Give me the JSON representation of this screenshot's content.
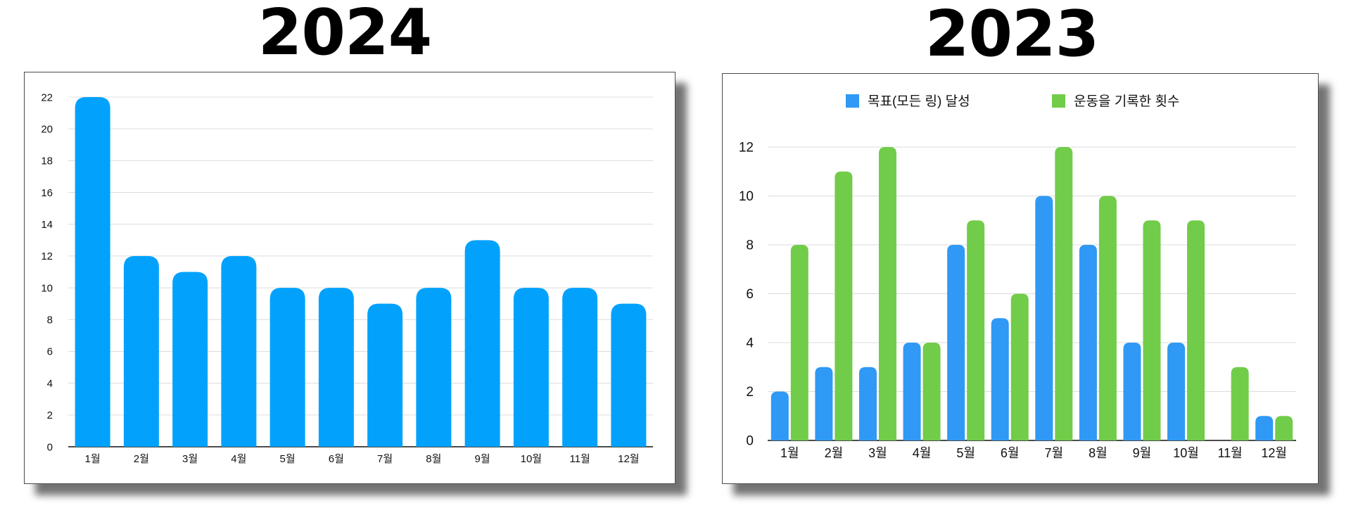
{
  "chart_data": [
    {
      "type": "bar",
      "title": "2024",
      "categories": [
        "1월",
        "2월",
        "3월",
        "4월",
        "5월",
        "6월",
        "7월",
        "8월",
        "9월",
        "10월",
        "11월",
        "12월"
      ],
      "series": [
        {
          "values": [
            22,
            12,
            11,
            12,
            10,
            10,
            9,
            10,
            13,
            10,
            10,
            9
          ],
          "color": "#02a2fc"
        }
      ],
      "ylim": [
        0,
        22
      ],
      "yticks": [
        0,
        2,
        4,
        6,
        8,
        10,
        12,
        14,
        16,
        18,
        20,
        22
      ],
      "grid": true,
      "legend": "none",
      "xlabel": "",
      "ylabel": ""
    },
    {
      "type": "bar",
      "title": "2023",
      "categories": [
        "1월",
        "2월",
        "3월",
        "4월",
        "5월",
        "6월",
        "7월",
        "8월",
        "9월",
        "10월",
        "11월",
        "12월"
      ],
      "series": [
        {
          "name": "목표(모든 링) 달성",
          "values": [
            2,
            3,
            3,
            4,
            8,
            5,
            10,
            8,
            4,
            4,
            0,
            1
          ],
          "color": "#2f99f5"
        },
        {
          "name": "운동을 기록한 횟수",
          "values": [
            8,
            11,
            12,
            4,
            9,
            6,
            12,
            10,
            9,
            9,
            3,
            1
          ],
          "color": "#71cc4a"
        }
      ],
      "ylim": [
        0,
        12
      ],
      "yticks": [
        0,
        2,
        4,
        6,
        8,
        10,
        12
      ],
      "grid": true,
      "legend": "top",
      "xlabel": "",
      "ylabel": ""
    }
  ]
}
